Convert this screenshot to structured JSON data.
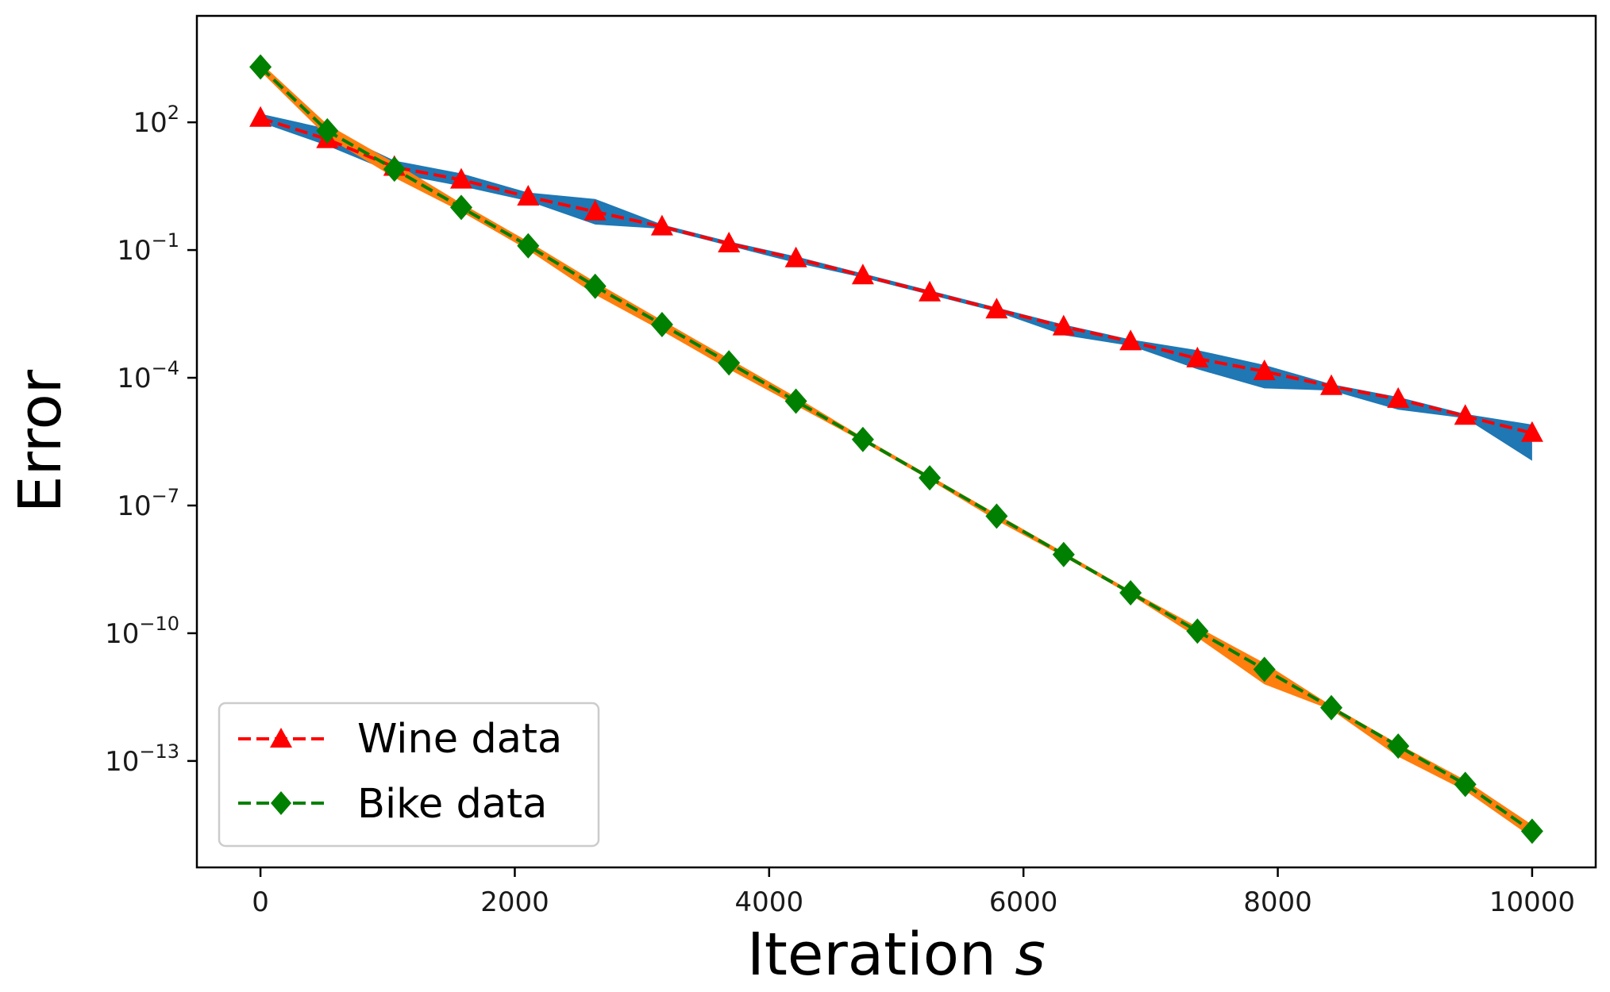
{
  "chart_data": {
    "type": "line",
    "title": "",
    "xlabel": "Iteration",
    "xlabel_var": "s",
    "ylabel": "Error",
    "yscale": "log",
    "xlim": [
      -500,
      10500
    ],
    "ylim_log10": [
      -15.5,
      4.5
    ],
    "x_ticks": [
      0,
      2000,
      4000,
      6000,
      8000,
      10000
    ],
    "y_tick_exponents": [
      2,
      -1,
      -4,
      -7,
      -10,
      -13
    ],
    "legend_position": "lower-left",
    "series": [
      {
        "name": "Wine data",
        "color": "#ff0000",
        "band_color": "#1f77b4",
        "marker": "triangle",
        "x": [
          0,
          526,
          1053,
          1579,
          2105,
          2632,
          3158,
          3684,
          4211,
          4737,
          5263,
          5789,
          6316,
          6842,
          7368,
          7895,
          8421,
          8947,
          9474,
          10000
        ],
        "log10_y": [
          2.1,
          1.6,
          0.95,
          0.65,
          0.25,
          -0.1,
          -0.45,
          -0.85,
          -1.2,
          -1.6,
          -2.0,
          -2.4,
          -2.8,
          -3.15,
          -3.55,
          -3.85,
          -4.2,
          -4.5,
          -4.9,
          -5.3
        ],
        "band_log10_upper": [
          2.2,
          1.85,
          1.1,
          0.8,
          0.35,
          0.2,
          -0.4,
          -0.8,
          -1.15,
          -1.55,
          -1.95,
          -2.35,
          -2.75,
          -3.1,
          -3.35,
          -3.7,
          -4.15,
          -4.45,
          -4.85,
          -5.1
        ],
        "band_log10_lower": [
          2.0,
          1.45,
          0.8,
          0.5,
          0.15,
          -0.4,
          -0.5,
          -0.9,
          -1.3,
          -1.65,
          -2.05,
          -2.45,
          -3.0,
          -3.25,
          -3.8,
          -4.25,
          -4.3,
          -4.75,
          -4.95,
          -5.95
        ]
      },
      {
        "name": "Bike data",
        "color": "#008000",
        "band_color": "#ff7f0e",
        "marker": "diamond",
        "x": [
          0,
          526,
          1053,
          1579,
          2105,
          2632,
          3158,
          3684,
          4211,
          4737,
          5263,
          5789,
          6316,
          6842,
          7368,
          7895,
          8421,
          8947,
          9474,
          10000
        ],
        "log10_y": [
          3.3,
          1.8,
          0.9,
          0.0,
          -0.9,
          -1.85,
          -2.75,
          -3.65,
          -4.55,
          -5.45,
          -6.35,
          -7.25,
          -8.15,
          -9.05,
          -9.95,
          -10.85,
          -11.75,
          -12.65,
          -13.55,
          -14.65
        ],
        "band_log10_upper": [
          3.4,
          1.95,
          1.05,
          0.1,
          -0.8,
          -1.75,
          -2.65,
          -3.55,
          -4.45,
          -5.4,
          -6.3,
          -7.2,
          -8.1,
          -9.0,
          -9.85,
          -10.7,
          -11.7,
          -12.6,
          -13.45,
          -14.5
        ],
        "band_log10_lower": [
          3.2,
          1.65,
          0.7,
          -0.1,
          -1.0,
          -2.05,
          -2.9,
          -3.8,
          -4.65,
          -5.5,
          -6.4,
          -7.35,
          -8.2,
          -9.1,
          -10.1,
          -11.2,
          -11.8,
          -12.9,
          -13.7,
          -14.8
        ]
      }
    ]
  }
}
